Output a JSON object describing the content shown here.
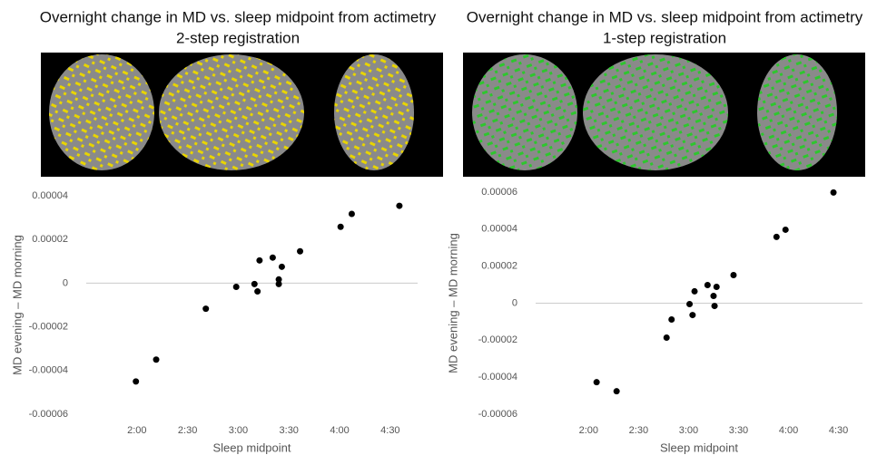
{
  "chart_data": [
    {
      "type": "scatter",
      "title": "Overnight change in MD vs. sleep midpoint from actimetry",
      "subtitle": "2-step registration",
      "x_label": "Sleep midpoint",
      "y_label": "MD evening – MD morning",
      "color": "#000000",
      "x": [
        1.99,
        2.19,
        2.68,
        2.98,
        3.16,
        3.19,
        3.21,
        3.34,
        3.4,
        3.4,
        3.43,
        3.61,
        4.01,
        4.12,
        4.59
      ],
      "values": [
        -4.5e-05,
        -3.5e-05,
        -1.17e-05,
        -1.7e-06,
        -4e-07,
        -3.8e-06,
        1.04e-05,
        1.17e-05,
        1.7e-06,
        -4e-07,
        7.5e-06,
        1.46e-05,
        2.58e-05,
        3.17e-05,
        3.54e-05
      ],
      "xlim": [
        1.5,
        4.77
      ],
      "xticks": [
        {
          "value": 2,
          "label": "2:00"
        },
        {
          "value": 2.5,
          "label": "2:30"
        },
        {
          "value": 3,
          "label": "3:00"
        },
        {
          "value": 3.5,
          "label": "3:30"
        },
        {
          "value": 4,
          "label": "4:00"
        },
        {
          "value": 4.5,
          "label": "4:30"
        }
      ],
      "ylim": [
        -6e-05,
        4e-05
      ],
      "yticks": [
        -6e-05,
        -4e-05,
        -2e-05,
        0,
        2e-05,
        4e-05
      ]
    },
    {
      "type": "scatter",
      "title": "Overnight change in MD vs. sleep midpoint from actimetry",
      "subtitle": "1-step registration",
      "x_label": "Sleep midpoint",
      "y_label": "MD evening – MD morning",
      "color": "#000000",
      "x": [
        2.08,
        2.28,
        2.78,
        2.83,
        3.01,
        3.04,
        3.06,
        3.19,
        3.25,
        3.26,
        3.28,
        3.45,
        3.88,
        3.97,
        4.45
      ],
      "values": [
        -4.27e-05,
        -4.76e-05,
        -1.86e-05,
        -8.8e-06,
        -5e-07,
        -6.4e-06,
        6.4e-06,
        9.8e-06,
        3.9e-06,
        -1.5e-06,
        8.8e-06,
        1.52e-05,
        3.58e-05,
        3.97e-05,
        5.98e-05
      ],
      "xlim": [
        1.47,
        4.74
      ],
      "xticks": [
        {
          "value": 2,
          "label": "2:00"
        },
        {
          "value": 2.5,
          "label": "2:30"
        },
        {
          "value": 3,
          "label": "3:00"
        },
        {
          "value": 3.5,
          "label": "3:30"
        },
        {
          "value": 4,
          "label": "4:00"
        },
        {
          "value": 4.5,
          "label": "4:30"
        }
      ],
      "ylim": [
        -6e-05,
        6e-05
      ],
      "yticks": [
        -6e-05,
        -4e-05,
        -2e-05,
        0,
        2e-05,
        4e-05,
        6e-05
      ]
    }
  ]
}
